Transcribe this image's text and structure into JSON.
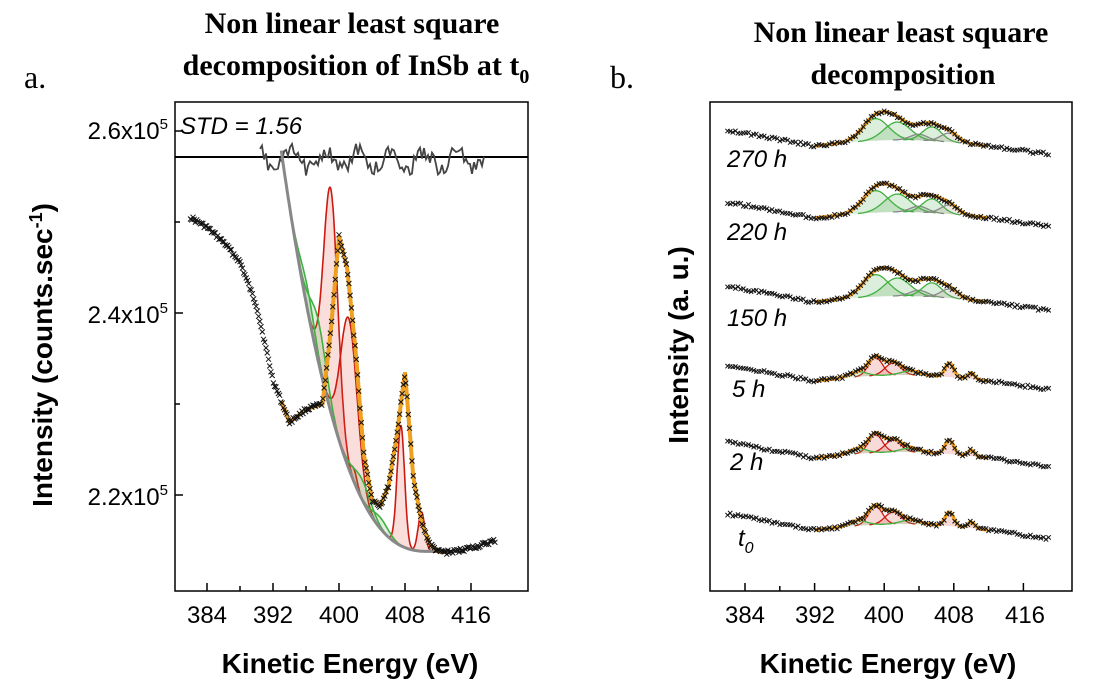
{
  "panel_a": {
    "label": "a.",
    "title_line1": "Non linear least square",
    "title_line2": "decomposition of InSb at t",
    "title_sub": "0",
    "residual_text": "STD = 1.56",
    "ylabel_main": "Intensity (counts.sec",
    "ylabel_sup": "-1",
    "ylabel_end": ")",
    "xlabel": "Kinetic Energy (eV)",
    "xticks": [
      "384",
      "392",
      "400",
      "408",
      "416"
    ],
    "yticks": [
      {
        "base": "2.2x10",
        "exp": "5"
      },
      {
        "base": "2.4x10",
        "exp": "5"
      },
      {
        "base": "2.6x10",
        "exp": "5"
      }
    ]
  },
  "panel_b": {
    "label": "b.",
    "title_line1": "Non linear least square",
    "title_line2": "decomposition",
    "ylabel": "Intensity (a. u.)",
    "xlabel": "Kinetic Energy (eV)",
    "xticks": [
      "384",
      "392",
      "400",
      "408",
      "416"
    ],
    "curve_labels": [
      {
        "base": "270 h",
        "sub": ""
      },
      {
        "base": "220 h",
        "sub": ""
      },
      {
        "base": "150 h",
        "sub": ""
      },
      {
        "base": "5 h",
        "sub": ""
      },
      {
        "base": "2 h",
        "sub": ""
      },
      {
        "base": "t",
        "sub": "0"
      }
    ]
  },
  "colors": {
    "data": "#111111",
    "fit": "#f0a020",
    "red": "#cc1a10",
    "green": "#40b040",
    "gray": "#888888",
    "residual": "#444444"
  },
  "chart_data": [
    {
      "type": "line",
      "title": "Non linear least square decomposition of InSb at t0",
      "xlabel": "Kinetic Energy (eV)",
      "ylabel": "Intensity (counts.sec-1)",
      "xlim": [
        382,
        419
      ],
      "ylim": [
        212000,
        270000
      ],
      "series": [
        {
          "name": "",
          "x": [
            382,
            384,
            386,
            388,
            390,
            392,
            394,
            396,
            398,
            399,
            400,
            401,
            402,
            403,
            404,
            405,
            406,
            407,
            408,
            409,
            410,
            411,
            412,
            413,
            414,
            415,
            416,
            417,
            418,
            419
          ],
          "values": [
            250500,
            249400,
            247800,
            245600,
            240800,
            232600,
            228000,
            229400,
            230000,
            238000,
            248500,
            244800,
            236000,
            224500,
            219500,
            218800,
            221000,
            226500,
            233500,
            222000,
            217000,
            214600,
            213800,
            213700,
            213800,
            214000,
            214200,
            214400,
            214700,
            215000
          ]
        }
      ],
      "annotation": "STD = 1.56"
    },
    {
      "type": "line",
      "title": "Non linear least square decomposition",
      "xlabel": "Kinetic Energy (eV)",
      "ylabel": "Intensity (a. u.)",
      "xlim": [
        382,
        419
      ],
      "series": [
        {
          "name": "270 h"
        },
        {
          "name": "220 h"
        },
        {
          "name": "150 h"
        },
        {
          "name": "5 h"
        },
        {
          "name": "2 h"
        },
        {
          "name": "t0"
        }
      ]
    }
  ]
}
